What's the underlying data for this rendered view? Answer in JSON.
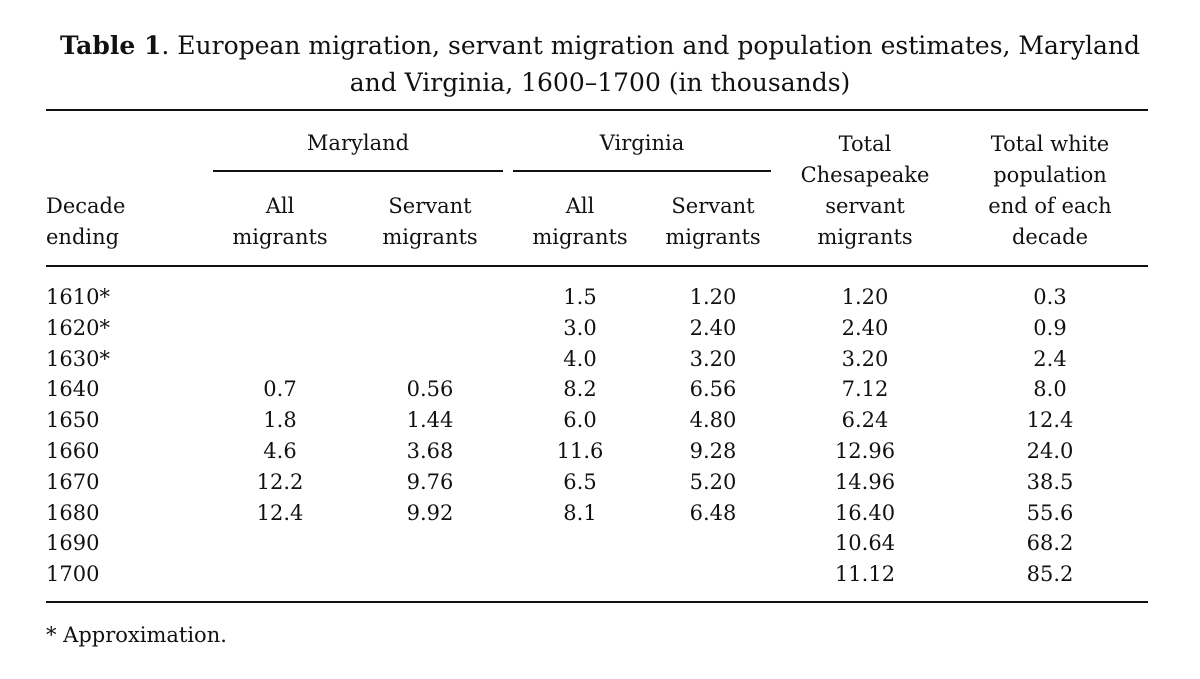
{
  "caption": {
    "label": "Table 1",
    "text": ". European migration, servant migration and population estimates, Maryland and Virginia, 1600–1700 (in thousands)"
  },
  "headers": {
    "maryland": "Maryland",
    "virginia": "Virginia",
    "decade": [
      "Decade",
      "ending"
    ],
    "md_all": [
      "All",
      "migrants"
    ],
    "md_servant": [
      "Servant",
      "migrants"
    ],
    "va_all": [
      "All",
      "migrants"
    ],
    "va_servant": [
      "Servant",
      "migrants"
    ],
    "total_servant": [
      "Total",
      "Chesapeake",
      "servant",
      "migrants"
    ],
    "total_white": [
      "Total white",
      "population",
      "end of each",
      "decade"
    ]
  },
  "rows": [
    [
      "1610*",
      "",
      "",
      "1.5",
      "1.20",
      "1.20",
      "0.3"
    ],
    [
      "1620*",
      "",
      "",
      "3.0",
      "2.40",
      "2.40",
      "0.9"
    ],
    [
      "1630*",
      "",
      "",
      "4.0",
      "3.20",
      "3.20",
      "2.4"
    ],
    [
      "1640",
      "0.7",
      "0.56",
      "8.2",
      "6.56",
      "7.12",
      "8.0"
    ],
    [
      "1650",
      "1.8",
      "1.44",
      "6.0",
      "4.80",
      "6.24",
      "12.4"
    ],
    [
      "1660",
      "4.6",
      "3.68",
      "11.6",
      "9.28",
      "12.96",
      "24.0"
    ],
    [
      "1670",
      "12.2",
      "9.76",
      "6.5",
      "5.20",
      "14.96",
      "38.5"
    ],
    [
      "1680",
      "12.4",
      "9.92",
      "8.1",
      "6.48",
      "16.40",
      "55.6"
    ],
    [
      "1690",
      "",
      "",
      "",
      "",
      "10.64",
      "68.2"
    ],
    [
      "1700",
      "",
      "",
      "",
      "",
      "11.12",
      "85.2"
    ]
  ],
  "footnote": "* Approximation."
}
